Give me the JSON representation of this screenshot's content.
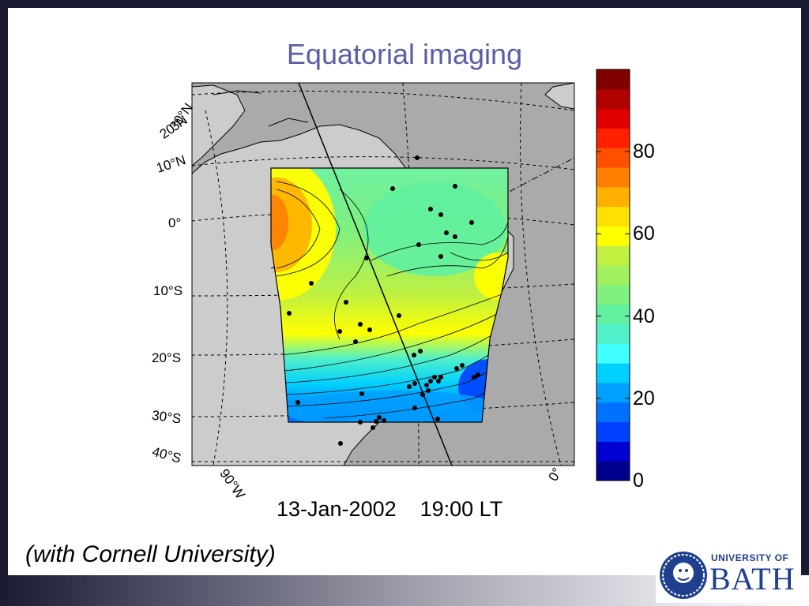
{
  "slide": {
    "title": "Equatorial imaging",
    "caption": "(with Cornell University)",
    "date_label": "13-Jan-2002    19:00 LT"
  },
  "map": {
    "lat_labels": [
      "30°N",
      "20°N",
      "10°N",
      "0°",
      "10°S",
      "20°S",
      "30°S",
      "40°S"
    ],
    "lon_labels": [
      "90°W",
      "0°"
    ]
  },
  "colorbar": {
    "ticks": [
      {
        "value": 0,
        "label": "0"
      },
      {
        "value": 20,
        "label": "20"
      },
      {
        "value": 40,
        "label": "40"
      },
      {
        "value": 60,
        "label": "60"
      },
      {
        "value": 80,
        "label": "80"
      }
    ],
    "range": [
      0,
      100
    ],
    "colors": [
      "#00008f",
      "#0000d0",
      "#0040ff",
      "#0070ff",
      "#00a0ff",
      "#00d0ff",
      "#40ffff",
      "#50f0c8",
      "#60f0a0",
      "#80f080",
      "#a0f060",
      "#c0f040",
      "#ffff00",
      "#ffe000",
      "#ffb000",
      "#ff8000",
      "#ff5000",
      "#ff2000",
      "#e00000",
      "#b00000",
      "#800000"
    ]
  },
  "logo": {
    "top": "UNIVERSITY OF",
    "main": "BATH"
  },
  "colors": {
    "title": "#5b5ea6",
    "ocean": "#aaaaaa",
    "land": "#cccccc",
    "logo": "#1f3f8f"
  }
}
